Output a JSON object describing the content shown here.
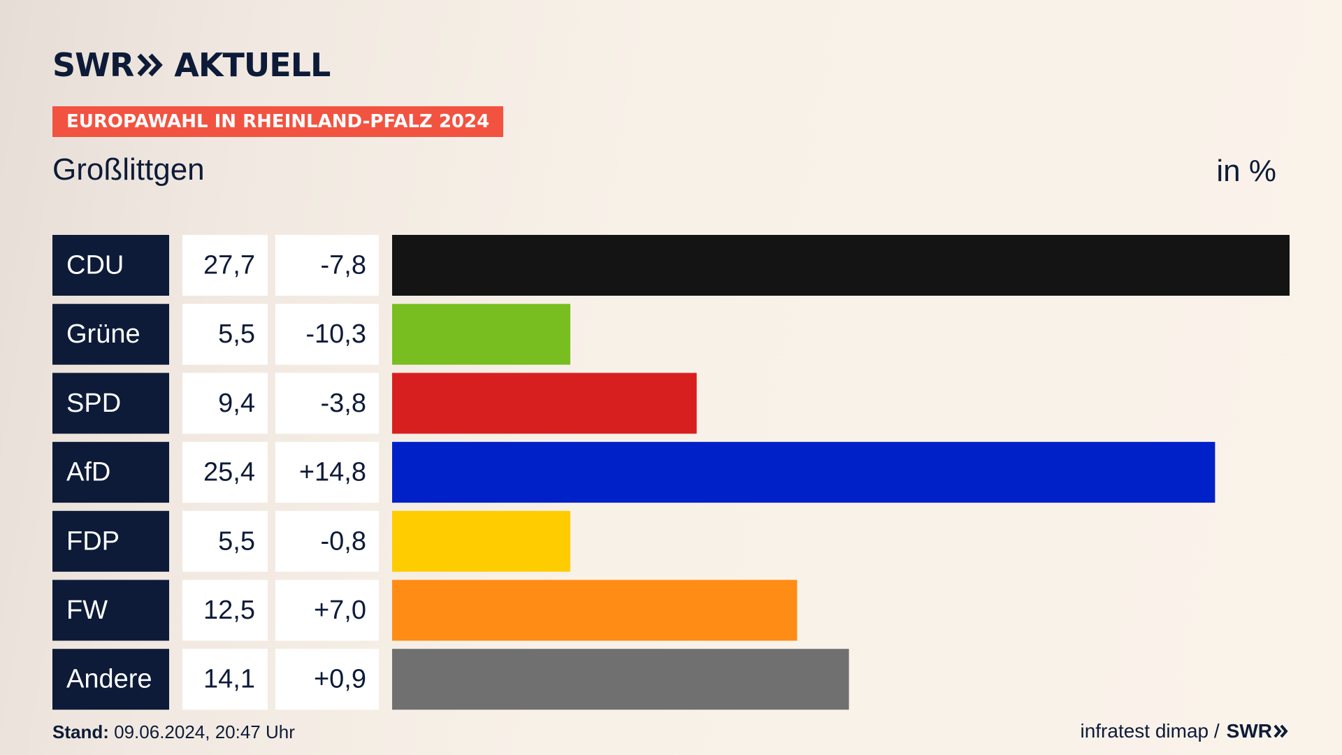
{
  "brand": {
    "left": "SWR",
    "right": "AKTUELL"
  },
  "event_badge": "EUROPAWAHL IN RHEINLAND-PFALZ 2024",
  "region": "Großlittgen",
  "unit": "in %",
  "footer": {
    "stand_label": "Stand:",
    "stand_value": "09.06.2024, 20:47 Uhr",
    "source": "infratest dimap /",
    "source_brand": "SWR"
  },
  "chart_data": {
    "type": "bar",
    "orientation": "horizontal",
    "categories": [
      "CDU",
      "Grüne",
      "SPD",
      "AfD",
      "FDP",
      "FW",
      "Andere"
    ],
    "values": [
      27.7,
      5.5,
      9.4,
      25.4,
      5.5,
      12.5,
      14.1
    ],
    "value_labels": [
      "27,7",
      "5,5",
      "9,4",
      "25,4",
      "5,5",
      "12,5",
      "14,1"
    ],
    "changes": [
      -7.8,
      -10.3,
      -3.8,
      14.8,
      -0.8,
      7.0,
      0.9
    ],
    "change_labels": [
      "-7,8",
      "-10,3",
      "-3,8",
      "+14,8",
      "-0,8",
      "+7,0",
      "+0,9"
    ],
    "colors": [
      "#141414",
      "#78be20",
      "#d71f1f",
      "#0021c8",
      "#ffcc00",
      "#ff8c14",
      "#707070"
    ],
    "xlim": [
      0,
      27.7
    ],
    "grid": false,
    "legend": "none"
  }
}
